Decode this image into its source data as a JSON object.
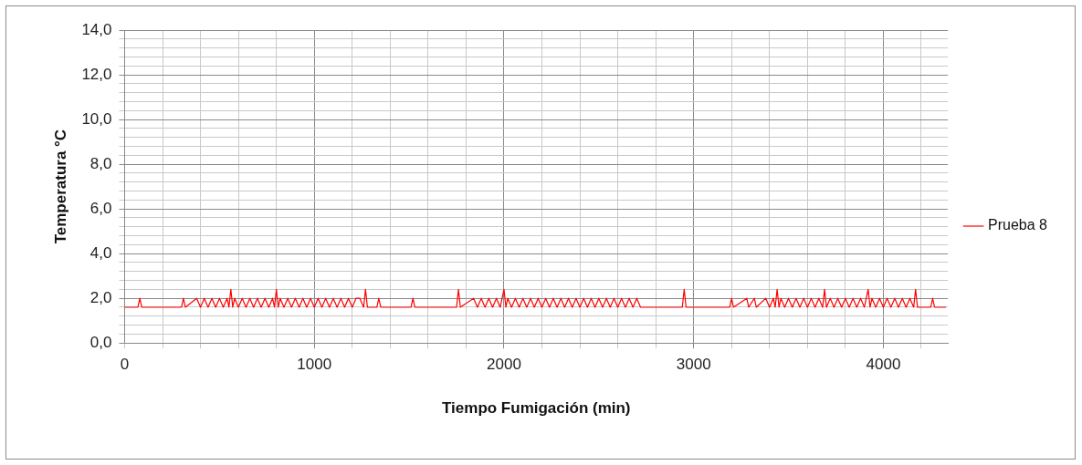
{
  "chart_data": {
    "type": "line",
    "xlabel": "Tiempo Fumigación (min)",
    "ylabel": "Temperatura °C",
    "xlim": [
      0,
      4340
    ],
    "ylim": [
      0,
      14
    ],
    "xticks": [
      0,
      {
        "value": 200,
        "label": null
      },
      {
        "value": 400,
        "label": null
      },
      {
        "value": 600,
        "label": null
      },
      {
        "value": 800,
        "label": null
      },
      1000,
      {
        "value": 1200,
        "label": null
      },
      {
        "value": 1400,
        "label": null
      },
      {
        "value": 1600,
        "label": null
      },
      {
        "value": 1800,
        "label": null
      },
      2000,
      {
        "value": 2200,
        "label": null
      },
      {
        "value": 2400,
        "label": null
      },
      {
        "value": 2600,
        "label": null
      },
      {
        "value": 2800,
        "label": null
      },
      3000,
      {
        "value": 3200,
        "label": null
      },
      {
        "value": 3400,
        "label": null
      },
      {
        "value": 3600,
        "label": null
      },
      {
        "value": 3800,
        "label": null
      },
      4000,
      {
        "value": 4200,
        "label": null
      }
    ],
    "yticks": [
      {
        "value": 0,
        "label": "0,0"
      },
      {
        "value": 0.4,
        "label": null
      },
      {
        "value": 0.8,
        "label": null
      },
      {
        "value": 1.2,
        "label": null
      },
      {
        "value": 1.6,
        "label": null
      },
      {
        "value": 2,
        "label": "2,0"
      },
      {
        "value": 2.4,
        "label": null
      },
      {
        "value": 2.8,
        "label": null
      },
      {
        "value": 3.2,
        "label": null
      },
      {
        "value": 3.6,
        "label": null
      },
      {
        "value": 4,
        "label": "4,0"
      },
      {
        "value": 4.4,
        "label": null
      },
      {
        "value": 4.8,
        "label": null
      },
      {
        "value": 5.2,
        "label": null
      },
      {
        "value": 5.6,
        "label": null
      },
      {
        "value": 6,
        "label": "6,0"
      },
      {
        "value": 6.4,
        "label": null
      },
      {
        "value": 6.8,
        "label": null
      },
      {
        "value": 7.2,
        "label": null
      },
      {
        "value": 7.6,
        "label": null
      },
      {
        "value": 8,
        "label": "8,0"
      },
      {
        "value": 8.4,
        "label": null
      },
      {
        "value": 8.8,
        "label": null
      },
      {
        "value": 9.2,
        "label": null
      },
      {
        "value": 9.6,
        "label": null
      },
      {
        "value": 10,
        "label": "10,0"
      },
      {
        "value": 10.4,
        "label": null
      },
      {
        "value": 10.8,
        "label": null
      },
      {
        "value": 11.2,
        "label": null
      },
      {
        "value": 11.6,
        "label": null
      },
      {
        "value": 12,
        "label": "12,0"
      },
      {
        "value": 12.4,
        "label": null
      },
      {
        "value": 12.8,
        "label": null
      },
      {
        "value": 13.2,
        "label": null
      },
      {
        "value": 13.6,
        "label": null
      },
      {
        "value": 14,
        "label": "14,0"
      }
    ],
    "grid": true,
    "legend": "right",
    "marker": "none",
    "line_style": "solid",
    "series": [
      {
        "name": "Prueba 8",
        "color": "#ff0000",
        "x": [
          0,
          70,
          80,
          90,
          300,
          310,
          320,
          380,
          400,
          420,
          440,
          460,
          480,
          500,
          520,
          540,
          550,
          560,
          570,
          580,
          600,
          620,
          640,
          660,
          680,
          700,
          720,
          740,
          760,
          780,
          790,
          800,
          810,
          820,
          840,
          860,
          880,
          900,
          920,
          940,
          960,
          980,
          1000,
          1020,
          1040,
          1060,
          1080,
          1100,
          1120,
          1140,
          1160,
          1180,
          1200,
          1220,
          1240,
          1260,
          1270,
          1280,
          1330,
          1340,
          1350,
          1510,
          1520,
          1530,
          1750,
          1760,
          1770,
          1840,
          1860,
          1880,
          1900,
          1920,
          1940,
          1960,
          1980,
          2000,
          2010,
          2020,
          2040,
          2060,
          2080,
          2100,
          2120,
          2140,
          2160,
          2180,
          2200,
          2220,
          2240,
          2260,
          2280,
          2300,
          2320,
          2340,
          2360,
          2380,
          2400,
          2420,
          2440,
          2460,
          2480,
          2500,
          2520,
          2540,
          2560,
          2580,
          2600,
          2620,
          2640,
          2660,
          2680,
          2700,
          2720,
          2940,
          2950,
          2960,
          3190,
          3200,
          3210,
          3280,
          3290,
          3320,
          3330,
          3380,
          3400,
          3420,
          3430,
          3440,
          3450,
          3460,
          3480,
          3500,
          3520,
          3540,
          3560,
          3580,
          3600,
          3620,
          3640,
          3660,
          3680,
          3690,
          3700,
          3720,
          3740,
          3760,
          3780,
          3800,
          3820,
          3840,
          3860,
          3880,
          3900,
          3920,
          3930,
          3940,
          3960,
          3980,
          4000,
          4020,
          4040,
          4060,
          4080,
          4100,
          4120,
          4140,
          4160,
          4170,
          4180,
          4250,
          4260,
          4270,
          4330
        ],
        "values": [
          1.6,
          1.6,
          2.0,
          1.6,
          1.6,
          2.0,
          1.6,
          2.0,
          1.6,
          2.0,
          1.6,
          2.0,
          1.6,
          2.0,
          1.6,
          2.0,
          1.6,
          2.4,
          1.6,
          2.0,
          1.6,
          2.0,
          1.6,
          2.0,
          1.6,
          2.0,
          1.6,
          2.0,
          1.6,
          2.0,
          1.6,
          2.4,
          1.6,
          2.0,
          1.6,
          2.0,
          1.6,
          2.0,
          1.6,
          2.0,
          1.6,
          2.0,
          1.6,
          2.0,
          1.6,
          2.0,
          1.6,
          2.0,
          1.6,
          2.0,
          1.6,
          2.0,
          1.6,
          2.0,
          2.0,
          1.6,
          2.4,
          1.6,
          1.6,
          2.0,
          1.6,
          1.6,
          2.0,
          1.6,
          1.6,
          2.4,
          1.6,
          2.0,
          1.6,
          2.0,
          1.6,
          2.0,
          1.6,
          2.0,
          1.6,
          2.4,
          1.6,
          2.0,
          1.6,
          2.0,
          1.6,
          2.0,
          1.6,
          2.0,
          1.6,
          2.0,
          1.6,
          2.0,
          1.6,
          2.0,
          1.6,
          2.0,
          1.6,
          2.0,
          1.6,
          2.0,
          1.6,
          2.0,
          1.6,
          2.0,
          1.6,
          2.0,
          1.6,
          2.0,
          1.6,
          2.0,
          1.6,
          2.0,
          1.6,
          2.0,
          1.6,
          2.0,
          1.6,
          1.6,
          2.4,
          1.6,
          1.6,
          2.0,
          1.6,
          2.0,
          1.6,
          2.0,
          1.6,
          2.0,
          1.6,
          2.0,
          1.6,
          2.4,
          1.6,
          2.0,
          1.6,
          2.0,
          1.6,
          2.0,
          1.6,
          2.0,
          1.6,
          2.0,
          1.6,
          2.0,
          1.6,
          2.4,
          1.6,
          2.0,
          1.6,
          2.0,
          1.6,
          2.0,
          1.6,
          2.0,
          1.6,
          2.0,
          1.6,
          2.4,
          1.6,
          2.0,
          1.6,
          2.0,
          1.6,
          2.0,
          1.6,
          2.0,
          1.6,
          2.0,
          1.6,
          2.0,
          1.6,
          2.4,
          1.6,
          1.6,
          2.0,
          1.6,
          1.6
        ]
      }
    ]
  }
}
